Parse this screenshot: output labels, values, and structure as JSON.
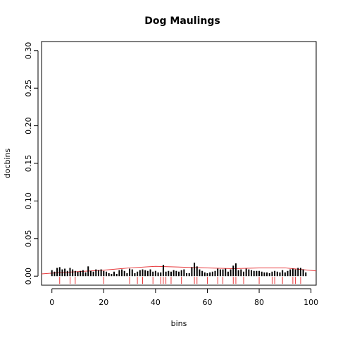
{
  "chart_data": {
    "type": "bar",
    "title": "Dog Maulings",
    "xlabel": "bins",
    "ylabel": "docbins",
    "xlim": [
      -4,
      102
    ],
    "ylim": [
      -0.012,
      0.312
    ],
    "xticks": [
      "0",
      "20",
      "40",
      "60",
      "80",
      "100"
    ],
    "yticks": [
      "0.00",
      "0.05",
      "0.10",
      "0.15",
      "0.20",
      "0.25",
      "0.30"
    ],
    "bars_x": [
      0,
      1,
      2,
      3,
      4,
      5,
      6,
      7,
      8,
      9,
      10,
      11,
      12,
      13,
      14,
      15,
      16,
      17,
      18,
      19,
      20,
      21,
      22,
      23,
      24,
      25,
      26,
      27,
      28,
      29,
      30,
      31,
      32,
      33,
      34,
      35,
      36,
      37,
      38,
      39,
      40,
      41,
      42,
      43,
      44,
      45,
      46,
      47,
      48,
      49,
      50,
      51,
      52,
      53,
      54,
      55,
      56,
      57,
      58,
      59,
      60,
      61,
      62,
      63,
      64,
      65,
      66,
      67,
      68,
      69,
      70,
      71,
      72,
      73,
      74,
      75,
      76,
      77,
      78,
      79,
      80,
      81,
      82,
      83,
      84,
      85,
      86,
      87,
      88,
      89,
      90,
      91,
      92,
      93,
      94,
      95,
      96,
      97,
      98
    ],
    "bars_y": [
      0.008,
      0.006,
      0.011,
      0.012,
      0.009,
      0.01,
      0.007,
      0.011,
      0.009,
      0.007,
      0.006,
      0.007,
      0.008,
      0.005,
      0.013,
      0.007,
      0.006,
      0.009,
      0.008,
      0.009,
      0.007,
      0.006,
      0.004,
      0.003,
      0.006,
      0.003,
      0.008,
      0.009,
      0.007,
      0.004,
      0.01,
      0.009,
      0.004,
      0.006,
      0.008,
      0.009,
      0.008,
      0.007,
      0.009,
      0.006,
      0.007,
      0.005,
      0.005,
      0.015,
      0.006,
      0.007,
      0.006,
      0.008,
      0.007,
      0.006,
      0.008,
      0.009,
      0.004,
      0.004,
      0.012,
      0.018,
      0.013,
      0.009,
      0.007,
      0.005,
      0.004,
      0.005,
      0.006,
      0.007,
      0.01,
      0.009,
      0.009,
      0.01,
      0.006,
      0.009,
      0.014,
      0.017,
      0.008,
      0.009,
      0.006,
      0.01,
      0.009,
      0.008,
      0.007,
      0.007,
      0.007,
      0.006,
      0.005,
      0.005,
      0.004,
      0.006,
      0.007,
      0.006,
      0.005,
      0.008,
      0.005,
      0.007,
      0.009,
      0.01,
      0.009,
      0.011,
      0.011,
      0.009,
      0.005
    ],
    "curve": {
      "color": "#e8393c",
      "x": [
        -4,
        0,
        10,
        20,
        30,
        40,
        50,
        60,
        70,
        80,
        90,
        102
      ],
      "y": [
        0.003,
        0.004,
        0.006,
        0.008,
        0.011,
        0.013,
        0.012,
        0.011,
        0.01,
        0.011,
        0.011,
        0.007
      ]
    },
    "rug": {
      "color": "#e8393c",
      "x": [
        3,
        7,
        9,
        20,
        30,
        33,
        35,
        39,
        42,
        43,
        44,
        46,
        50,
        55,
        56,
        60,
        64,
        66,
        70,
        71,
        74,
        80,
        85,
        86,
        89,
        93,
        94,
        96
      ]
    },
    "grid": false,
    "legend": "none"
  }
}
